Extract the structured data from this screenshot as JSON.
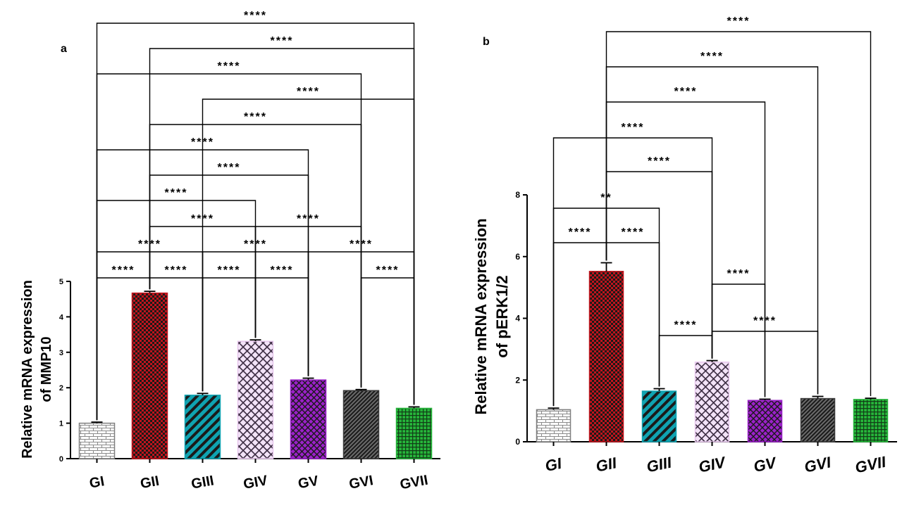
{
  "chart_data": [
    {
      "panel_label": "a",
      "type": "bar",
      "ylabel_line1": "Relative mRNA expression",
      "ylabel_line2": "of MMP10",
      "categories": [
        "GI",
        "GII",
        "GIII",
        "GIV",
        "GV",
        "GVI",
        "GVII"
      ],
      "values": [
        1.0,
        4.67,
        1.79,
        3.31,
        2.22,
        1.92,
        1.42
      ],
      "errors": [
        0.03,
        0.05,
        0.05,
        0.04,
        0.05,
        0.03,
        0.04
      ],
      "ylim": [
        0,
        5
      ],
      "yticks": [
        "0",
        "1",
        "2",
        "3",
        "4",
        "5"
      ],
      "bar_colors": [
        "#7f7f7f",
        "#c0141c",
        "#0fa3b1",
        "#e8c8ee",
        "#9b21c9",
        "#3c3c3c",
        "#26b53a"
      ],
      "bar_fill_colors": [
        "#ffffff",
        "#c0141c",
        "#0fa3b1",
        "#f5e6fa",
        "#9b21c9",
        "#3c3c3c",
        "#26b53a"
      ],
      "patterns": [
        "brick",
        "checker",
        "diagonal",
        "crosshatch",
        "crosshatch-dense",
        "diagonal-fine",
        "grid"
      ],
      "significance": [
        {
          "from": "GI",
          "to": "GII",
          "label": "****"
        },
        {
          "from": "GII",
          "to": "GIII",
          "label": "****"
        },
        {
          "from": "GIII",
          "to": "GIV",
          "label": "****"
        },
        {
          "from": "GIV",
          "to": "GV",
          "label": "****"
        },
        {
          "from": "GVI",
          "to": "GVII",
          "label": "****"
        },
        {
          "from": "GI",
          "to": "GIII",
          "label": "****"
        },
        {
          "from": "GIII",
          "to": "GV",
          "label": "****"
        },
        {
          "from": "GV",
          "to": "GVII",
          "label": "****"
        },
        {
          "from": "GII",
          "to": "GIV",
          "label": "****"
        },
        {
          "from": "GIV",
          "to": "GVI",
          "label": "****"
        },
        {
          "from": "GI",
          "to": "GIV",
          "label": "****"
        },
        {
          "from": "GII",
          "to": "GV",
          "label": "****"
        },
        {
          "from": "GI",
          "to": "GV",
          "label": "****"
        },
        {
          "from": "GII",
          "to": "GVI",
          "label": "****"
        },
        {
          "from": "GIII",
          "to": "GVII",
          "label": "****"
        },
        {
          "from": "GI",
          "to": "GVI",
          "label": "****"
        },
        {
          "from": "GII",
          "to": "GVII",
          "label": "****"
        },
        {
          "from": "GI",
          "to": "GVII",
          "label": "****"
        }
      ]
    },
    {
      "panel_label": "b",
      "type": "bar",
      "ylabel_line1": "Relative mRNA expression",
      "ylabel_line2": "of pERK1/2",
      "categories": [
        "GI",
        "GII",
        "GIII",
        "GIV",
        "GV",
        "GVI",
        "GVII"
      ],
      "values": [
        1.04,
        5.52,
        1.64,
        2.58,
        1.34,
        1.4,
        1.37
      ],
      "errors": [
        0.05,
        0.28,
        0.08,
        0.05,
        0.04,
        0.07,
        0.04
      ],
      "ylim": [
        0,
        8
      ],
      "yticks": [
        "0",
        "2",
        "4",
        "6",
        "8"
      ],
      "bar_colors": [
        "#7f7f7f",
        "#c0141c",
        "#0fa3b1",
        "#e8c8ee",
        "#9b21c9",
        "#3c3c3c",
        "#26b53a"
      ],
      "bar_fill_colors": [
        "#ffffff",
        "#c0141c",
        "#0fa3b1",
        "#f5e6fa",
        "#9b21c9",
        "#3c3c3c",
        "#26b53a"
      ],
      "patterns": [
        "brick",
        "checker",
        "diagonal",
        "crosshatch",
        "crosshatch-dense",
        "diagonal-fine",
        "grid"
      ],
      "significance": [
        {
          "from": "GI",
          "to": "GII",
          "label": "****"
        },
        {
          "from": "GII",
          "to": "GIII",
          "label": "****"
        },
        {
          "from": "GI",
          "to": "GIII",
          "label": "**"
        },
        {
          "from": "GIII",
          "to": "GIV",
          "label": "****"
        },
        {
          "from": "GIV",
          "to": "GV",
          "label": "****"
        },
        {
          "from": "GIV",
          "to": "GVI",
          "label": "****"
        },
        {
          "from": "GII",
          "to": "GIV",
          "label": "****"
        },
        {
          "from": "GI",
          "to": "GIV",
          "label": "****"
        },
        {
          "from": "GII",
          "to": "GV",
          "label": "****"
        },
        {
          "from": "GII",
          "to": "GVI",
          "label": "****"
        },
        {
          "from": "GII",
          "to": "GVII",
          "label": "****"
        }
      ]
    }
  ]
}
